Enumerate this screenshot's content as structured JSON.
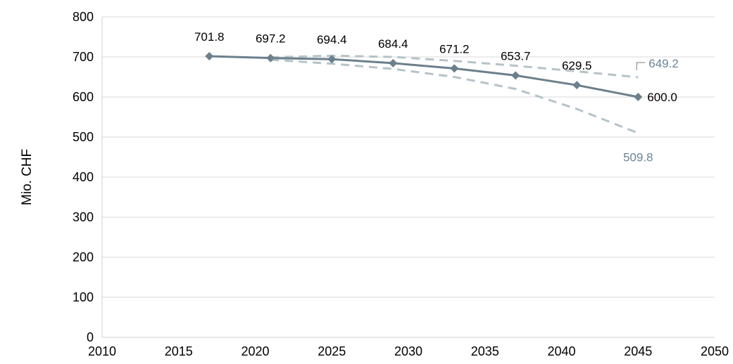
{
  "chart_data": {
    "type": "line",
    "xlabel": "",
    "ylabel": "Mio. CHF",
    "xlim": [
      2010,
      2050
    ],
    "ylim": [
      0,
      800
    ],
    "x_ticks": [
      "2010",
      "2015",
      "2020",
      "2025",
      "2030",
      "2035",
      "2040",
      "2045",
      "2050"
    ],
    "y_ticks": [
      "0",
      "100",
      "200",
      "300",
      "400",
      "500",
      "600",
      "700",
      "800"
    ],
    "grid": "horizontal",
    "series": [
      {
        "style": "solid-diamond",
        "color": "#6b7f8c",
        "x": [
          2017,
          2021,
          2025,
          2029,
          2033,
          2037,
          2041,
          2045
        ],
        "values": [
          701.8,
          697.2,
          694.4,
          684.4,
          671.2,
          653.7,
          629.5,
          600.0
        ],
        "labels": [
          "701.8",
          "697.2",
          "694.4",
          "684.4",
          "671.2",
          "653.7",
          "629.5",
          "600.0"
        ]
      },
      {
        "style": "dashed",
        "color": "#b5c3c9",
        "x": [
          2021,
          2025,
          2029,
          2033,
          2037,
          2041,
          2045
        ],
        "values": [
          699.0,
          703.0,
          700.0,
          690.0,
          678.0,
          664.0,
          649.2
        ],
        "end_label": "649.2"
      },
      {
        "style": "dashed",
        "color": "#b5c3c9",
        "x": [
          2021,
          2025,
          2029,
          2033,
          2037,
          2041,
          2045
        ],
        "values": [
          693.0,
          683.0,
          670.0,
          650.0,
          620.0,
          570.0,
          509.8
        ],
        "end_label": "509.8"
      }
    ],
    "end_label_color": "#6b8594"
  }
}
